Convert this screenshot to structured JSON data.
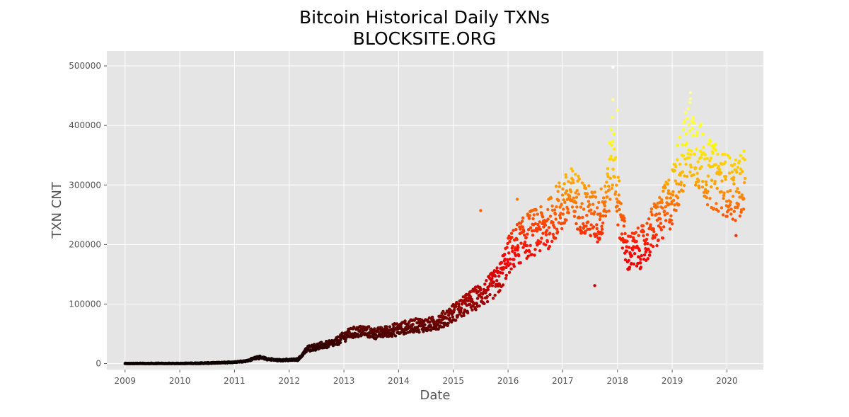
{
  "chart_data": {
    "type": "scatter",
    "title": "Bitcoin Historical Daily TXNs",
    "subtitle": "BLOCKSITE.ORG",
    "xlabel": "Date",
    "ylabel": "TXN CNT",
    "x_ticks": [
      "2009",
      "2010",
      "2011",
      "2012",
      "2013",
      "2014",
      "2015",
      "2016",
      "2017",
      "2018",
      "2019",
      "2020"
    ],
    "y_ticks": [
      "0",
      "100000",
      "200000",
      "300000",
      "400000",
      "500000"
    ],
    "xlim": [
      "2008-09",
      "2020-09"
    ],
    "ylim": [
      -10000,
      525000
    ],
    "grid": true,
    "style": "ggplot",
    "colormap": "hot (dark red → red → orange → yellow → white, by TXN CNT)",
    "series": [
      {
        "points": [
          [
            "2009-01",
            0
          ],
          [
            "2009-04",
            0
          ],
          [
            "2009-07",
            0
          ],
          [
            "2009-10",
            0
          ],
          [
            "2010-01",
            100
          ],
          [
            "2010-04",
            400
          ],
          [
            "2010-07",
            800
          ],
          [
            "2010-10",
            1500
          ],
          [
            "2011-01",
            2500
          ],
          [
            "2011-04",
            5000
          ],
          [
            "2011-06",
            11000
          ],
          [
            "2011-08",
            8000
          ],
          [
            "2011-10",
            6000
          ],
          [
            "2012-01",
            6000
          ],
          [
            "2012-03",
            7000
          ],
          [
            "2012-05",
            25000
          ],
          [
            "2012-08",
            30000
          ],
          [
            "2012-11",
            35000
          ],
          [
            "2013-02",
            50000
          ],
          [
            "2013-05",
            55000
          ],
          [
            "2013-08",
            50000
          ],
          [
            "2013-11",
            55000
          ],
          [
            "2014-02",
            60000
          ],
          [
            "2014-05",
            65000
          ],
          [
            "2014-08",
            65000
          ],
          [
            "2014-11",
            75000
          ],
          [
            "2015-02",
            90000
          ],
          [
            "2015-05",
            105000
          ],
          [
            "2015-08",
            120000
          ],
          [
            "2015-11",
            140000
          ],
          [
            "2016-01",
            180000
          ],
          [
            "2016-03",
            200000
          ],
          [
            "2016-06",
            220000
          ],
          [
            "2016-09",
            225000
          ],
          [
            "2016-12",
            260000
          ],
          [
            "2017-03",
            280000
          ],
          [
            "2017-06",
            260000
          ],
          [
            "2017-09",
            240000
          ],
          [
            "2017-11",
            300000
          ],
          [
            "2017-12",
            360000
          ],
          [
            "2018-01",
            280000
          ],
          [
            "2018-03",
            185000
          ],
          [
            "2018-05",
            190000
          ],
          [
            "2018-07",
            200000
          ],
          [
            "2018-09",
            230000
          ],
          [
            "2018-11",
            250000
          ],
          [
            "2019-01",
            280000
          ],
          [
            "2019-03",
            340000
          ],
          [
            "2019-05",
            380000
          ],
          [
            "2019-07",
            350000
          ],
          [
            "2019-09",
            320000
          ],
          [
            "2019-11",
            310000
          ],
          [
            "2020-01",
            300000
          ],
          [
            "2020-03",
            290000
          ],
          [
            "2020-05",
            310000
          ]
        ],
        "outliers": [
          [
            "2015-07",
            257000
          ],
          [
            "2017-08",
            131000
          ],
          [
            "2017-12",
            498000
          ],
          [
            "2017-12",
            443000
          ],
          [
            "2019-05",
            455000
          ],
          [
            "2019-05",
            445000
          ],
          [
            "2018-01",
            425000
          ],
          [
            "2016-03",
            276000
          ],
          [
            "2020-03",
            215000
          ]
        ]
      }
    ]
  }
}
